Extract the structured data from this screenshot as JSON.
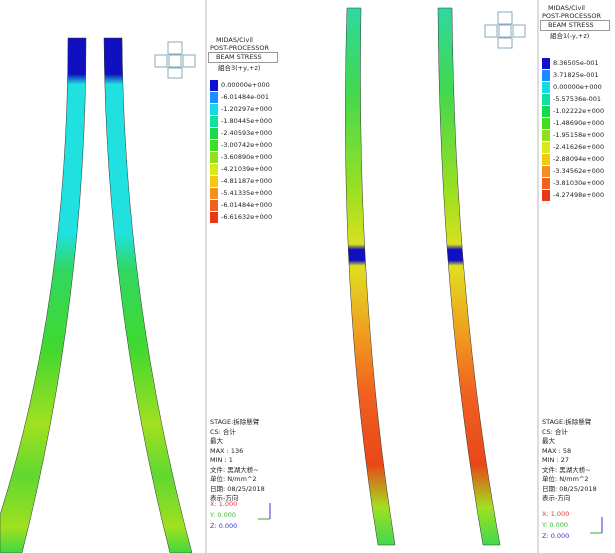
{
  "panels": [
    {
      "header": {
        "app": "MIDAS/Civil",
        "module": "POST-PROCESSOR",
        "result": "BEAM STRESS",
        "load_case": "組合3(+y,+z)"
      },
      "legend": {
        "labels": [
          "0.00000e+000",
          "-6.01484e-001",
          "-1.20297e+000",
          "-1.80445e+000",
          "-2.40593e+000",
          "-3.00742e+000",
          "-3.60890e+000",
          "-4.21039e+000",
          "-4.81187e+000",
          "-5.41335e+000",
          "-6.01484e+000",
          "-6.61632e+000"
        ],
        "colors": [
          "#1010d0",
          "#1a8cff",
          "#18d8e8",
          "#10e0a0",
          "#18d850",
          "#40e020",
          "#90e020",
          "#d8e818",
          "#f0c818",
          "#f09020",
          "#f06020",
          "#e83818"
        ]
      },
      "info": [
        "STAGE:拆除懸臂",
        "CS: 合计",
        "最大",
        "MAX : 136",
        "MIN : 1",
        "文件: 黑湖大桥~",
        "单位: N/mm^2",
        "日期: 08/25/2018",
        "表示-方向"
      ],
      "axes": [
        "X: 1.000",
        "Y: 0.000",
        "Z: 0.000"
      ]
    },
    {
      "header": {
        "app": "MIDAS/Civil",
        "module": "POST-PROCESSOR",
        "result": "BEAM STRESS",
        "load_case": "組合1(-y,+z)"
      },
      "legend": {
        "labels": [
          "8.36505e-001",
          "3.71825e-001",
          "0.00000e+000",
          "-5.57536e-001",
          "-1.02222e+000",
          "-1.48690e+000",
          "-1.95158e+000",
          "-2.41626e+000",
          "-2.88094e+000",
          "-3.34562e+000",
          "-3.81030e+000",
          "-4.27498e+000"
        ],
        "colors": [
          "#1010d0",
          "#1a8cff",
          "#18d8e8",
          "#10e0a0",
          "#18d850",
          "#40e020",
          "#90e020",
          "#d8e818",
          "#f0c818",
          "#f09020",
          "#f06020",
          "#e83818"
        ]
      },
      "info": [
        "STAGE:拆除懸臂",
        "CS: 合计",
        "最大",
        "MAX : 58",
        "MIN : 27",
        "文件: 黑湖大桥~",
        "单位: N/mm^2",
        "日期: 08/25/2018",
        "表示-方向"
      ],
      "axes": [
        "X: 1.000",
        "Y: 0.000",
        "Z: 0.000"
      ]
    }
  ]
}
